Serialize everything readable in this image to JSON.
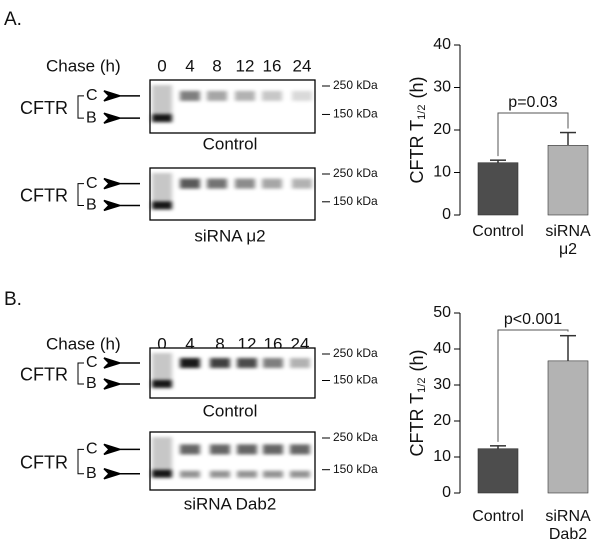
{
  "panels": [
    {
      "label": "A.",
      "chase": "Chase (h)",
      "lanes": [
        "0",
        "4",
        "8",
        "12",
        "16",
        "24"
      ],
      "blots": [
        {
          "protein": "CFTR",
          "bands": [
            "C",
            "B"
          ],
          "markers": [
            "250 kDa",
            "150 kDa"
          ],
          "caption": "Control"
        },
        {
          "protein": "CFTR",
          "bands": [
            "C",
            "B"
          ],
          "markers": [
            "250 kDa",
            "150 kDa"
          ],
          "caption": "siRNA μ2"
        }
      ]
    },
    {
      "label": "B.",
      "chase": "Chase (h)",
      "lanes": [
        "0",
        "4",
        "8",
        "12",
        "16",
        "24"
      ],
      "blots": [
        {
          "protein": "CFTR",
          "bands": [
            "C",
            "B"
          ],
          "markers": [
            "250 kDa",
            "150 kDa"
          ],
          "caption": "Control"
        },
        {
          "protein": "CFTR",
          "bands": [
            "C",
            "B"
          ],
          "markers": [
            "250 kDa",
            "150 kDa"
          ],
          "caption": "siRNA Dab2"
        }
      ]
    }
  ],
  "chart_data": [
    {
      "type": "bar",
      "ylabel": "CFTR T",
      "ylabel_sub": "1/2",
      "ylabel_unit": "(h)",
      "categories": [
        [
          "Control"
        ],
        [
          "siRNA",
          "μ2"
        ]
      ],
      "values": [
        12.3,
        16.4
      ],
      "errors": [
        0.6,
        3.0
      ],
      "colors": [
        "#4d4d4d",
        "#b3b3b3"
      ],
      "ylim": [
        0,
        40
      ],
      "yticks": [
        0,
        10,
        20,
        30,
        40
      ],
      "annotation": "p=0.03"
    },
    {
      "type": "bar",
      "ylabel": "CFTR T",
      "ylabel_sub": "1/2",
      "ylabel_unit": "(h)",
      "categories": [
        [
          "Control"
        ],
        [
          "siRNA",
          "Dab2"
        ]
      ],
      "values": [
        12.3,
        36.7
      ],
      "errors": [
        0.8,
        7.0
      ],
      "colors": [
        "#4d4d4d",
        "#b3b3b3"
      ],
      "ylim": [
        0,
        50
      ],
      "yticks": [
        0,
        10,
        20,
        30,
        40,
        50
      ],
      "annotation": "p<0.001"
    }
  ]
}
